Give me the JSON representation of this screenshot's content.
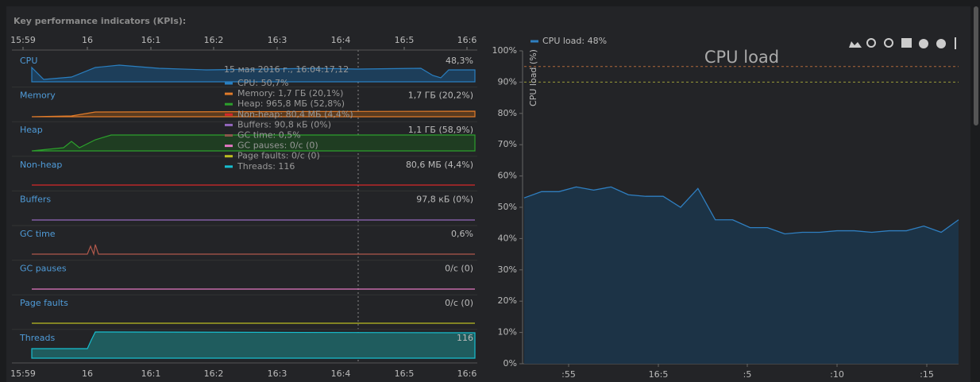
{
  "panel_title": "Key performance indicators (KPIs):",
  "time_axis": [
    "15:59",
    "16",
    "16:1",
    "16:2",
    "16:3",
    "16:4",
    "16:5",
    "16:6"
  ],
  "rows": [
    {
      "name": "CPU",
      "value": "48,3%",
      "color": "#2a7fc0"
    },
    {
      "name": "Memory",
      "value": "1,7 ГБ (20,2%)",
      "color": "#e07b2a"
    },
    {
      "name": "Heap",
      "value": "1,1 ГБ (58,9%)",
      "color": "#2ca02c"
    },
    {
      "name": "Non-heap",
      "value": "80,6 МБ (4,4%)",
      "color": "#d62728"
    },
    {
      "name": "Buffers",
      "value": "97,8 кБ (0%)",
      "color": "#9467bd"
    },
    {
      "name": "GC time",
      "value": "0,6%",
      "color": "#8c564b"
    },
    {
      "name": "GC pauses",
      "value": "0/с (0)",
      "color": "#e377c2"
    },
    {
      "name": "Page faults",
      "value": "0/с (0)",
      "color": "#bcbd22"
    },
    {
      "name": "Threads",
      "value": "116",
      "color": "#17becf"
    }
  ],
  "tooltip": {
    "time": "15 мая 2016 г., 16:04:17,12",
    "items": [
      "CPU: 50,7%",
      "Memory: 1,7 ГБ (20,1%)",
      "Heap: 965,8 МБ (52,8%)",
      "Non-heap: 80,4 МБ (4,4%)",
      "Buffers: 90,8 кБ (0%)",
      "GC time: 0,5%",
      "GC pauses: 0/с (0)",
      "Page faults: 0/с (0)",
      "Threads: 116"
    ]
  },
  "chart_data": {
    "type": "area",
    "title": "CPU load",
    "legend": "CPU load: 48%",
    "ylabel": "CPU load (%)",
    "color": "#2f7fc1",
    "values": [
      53,
      55,
      55,
      56.5,
      55.5,
      56.5,
      54,
      53.5,
      53.5,
      50,
      56,
      46,
      46,
      43.5,
      43.5,
      41.5,
      42,
      42,
      42.5,
      42.5,
      42,
      42.5,
      42.5,
      44,
      42,
      46
    ],
    "ylim": [
      0,
      100
    ],
    "yticks": [
      {
        "value": 0,
        "label": "0%"
      },
      {
        "value": 10,
        "label": "10%"
      },
      {
        "value": 20,
        "label": "20%"
      },
      {
        "value": 30,
        "label": "30%"
      },
      {
        "value": 40,
        "label": "40%"
      },
      {
        "value": 50,
        "label": "50%"
      },
      {
        "value": 60,
        "label": "60%"
      },
      {
        "value": 70,
        "label": "70%"
      },
      {
        "value": 80,
        "label": "80%"
      },
      {
        "value": 90,
        "label": "90%"
      },
      {
        "value": 100,
        "label": "100%"
      }
    ],
    "xtick_labels": [
      ":55",
      "16:5",
      ":5",
      ":10",
      ":15"
    ],
    "reference_lines": [
      {
        "value": 95,
        "color": "#b0683a"
      },
      {
        "value": 90,
        "color": "#9a9a3a"
      }
    ]
  }
}
